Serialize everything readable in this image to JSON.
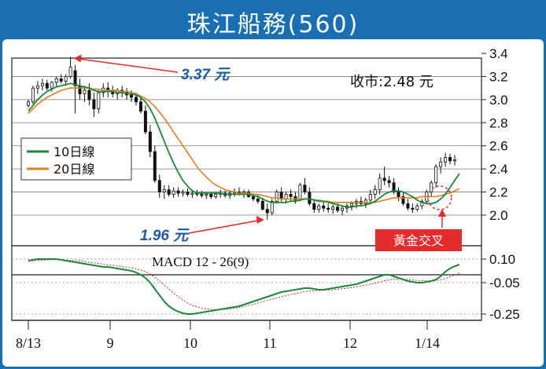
{
  "header": {
    "title": "珠江船務(560)"
  },
  "chart_data": [
    {
      "type": "candlestick",
      "close_label": "收市:2.48 元",
      "yticks": [
        "3.4",
        "3.2",
        "3.0",
        "2.8",
        "2.6",
        "2.4",
        "2.2",
        "2.0"
      ],
      "ylim": [
        1.9,
        3.42
      ],
      "xticks": [
        "8/13",
        "9",
        "10",
        "11",
        "12",
        "1/14"
      ],
      "legend": [
        {
          "name": "10日線",
          "color": "#1a8a3a"
        },
        {
          "name": "20日線",
          "color": "#e0801e"
        }
      ],
      "annotations": {
        "high": "3.37 元",
        "low": "1.96 元",
        "golden_cross": "黃金交叉"
      },
      "candles": [
        [
          2.95,
          3.0,
          2.93,
          2.98
        ],
        [
          2.98,
          3.12,
          2.96,
          3.1
        ],
        [
          3.1,
          3.16,
          3.05,
          3.12
        ],
        [
          3.12,
          3.18,
          3.08,
          3.14
        ],
        [
          3.14,
          3.17,
          3.08,
          3.1
        ],
        [
          3.1,
          3.16,
          3.07,
          3.15
        ],
        [
          3.15,
          3.2,
          3.11,
          3.18
        ],
        [
          3.18,
          3.22,
          3.14,
          3.16
        ],
        [
          3.16,
          3.22,
          3.12,
          3.2
        ],
        [
          3.2,
          3.37,
          3.18,
          3.28
        ],
        [
          3.25,
          3.3,
          2.88,
          3.12
        ],
        [
          3.12,
          3.18,
          3.0,
          3.05
        ],
        [
          3.05,
          3.12,
          2.98,
          3.08
        ],
        [
          3.08,
          3.14,
          2.95,
          3.0
        ],
        [
          3.0,
          3.06,
          2.85,
          2.92
        ],
        [
          2.92,
          3.08,
          2.88,
          3.06
        ],
        [
          3.06,
          3.14,
          3.02,
          3.1
        ],
        [
          3.1,
          3.15,
          3.02,
          3.08
        ],
        [
          3.08,
          3.12,
          3.02,
          3.05
        ],
        [
          3.05,
          3.1,
          3.0,
          3.08
        ],
        [
          3.08,
          3.12,
          3.02,
          3.06
        ],
        [
          3.06,
          3.1,
          3.0,
          3.04
        ],
        [
          3.04,
          3.08,
          2.98,
          3.02
        ],
        [
          3.02,
          3.06,
          2.95,
          2.98
        ],
        [
          2.98,
          3.02,
          2.88,
          2.9
        ],
        [
          2.9,
          2.95,
          2.7,
          2.72
        ],
        [
          2.72,
          2.78,
          2.5,
          2.55
        ],
        [
          2.55,
          2.6,
          2.28,
          2.3
        ],
        [
          2.3,
          2.35,
          2.15,
          2.2
        ],
        [
          2.2,
          2.26,
          2.14,
          2.22
        ],
        [
          2.22,
          2.26,
          2.16,
          2.18
        ],
        [
          2.18,
          2.24,
          2.15,
          2.21
        ],
        [
          2.21,
          2.24,
          2.16,
          2.19
        ],
        [
          2.19,
          2.22,
          2.16,
          2.2
        ],
        [
          2.2,
          2.23,
          2.16,
          2.18
        ],
        [
          2.18,
          2.22,
          2.15,
          2.19
        ],
        [
          2.19,
          2.22,
          2.16,
          2.18
        ],
        [
          2.18,
          2.21,
          2.15,
          2.17
        ],
        [
          2.17,
          2.2,
          2.14,
          2.18
        ],
        [
          2.18,
          2.2,
          2.14,
          2.16
        ],
        [
          2.16,
          2.2,
          2.14,
          2.18
        ],
        [
          2.18,
          2.22,
          2.15,
          2.19
        ],
        [
          2.19,
          2.21,
          2.15,
          2.17
        ],
        [
          2.17,
          2.21,
          2.14,
          2.19
        ],
        [
          2.19,
          2.23,
          2.16,
          2.2
        ],
        [
          2.2,
          2.24,
          2.17,
          2.18
        ],
        [
          2.18,
          2.22,
          2.15,
          2.2
        ],
        [
          2.2,
          2.22,
          2.15,
          2.16
        ],
        [
          2.16,
          2.19,
          2.12,
          2.14
        ],
        [
          2.14,
          2.18,
          2.1,
          2.12
        ],
        [
          2.12,
          2.15,
          2.04,
          2.05
        ],
        [
          2.05,
          2.1,
          1.96,
          2.02
        ],
        [
          2.02,
          2.14,
          2.0,
          2.12
        ],
        [
          2.12,
          2.22,
          2.1,
          2.2
        ],
        [
          2.2,
          2.24,
          2.12,
          2.14
        ],
        [
          2.14,
          2.2,
          2.1,
          2.18
        ],
        [
          2.18,
          2.22,
          2.12,
          2.16
        ],
        [
          2.16,
          2.2,
          2.1,
          2.13
        ],
        [
          2.13,
          2.28,
          2.12,
          2.26
        ],
        [
          2.26,
          2.32,
          2.18,
          2.2
        ],
        [
          2.2,
          2.24,
          2.08,
          2.1
        ],
        [
          2.1,
          2.14,
          2.02,
          2.05
        ],
        [
          2.05,
          2.1,
          2.02,
          2.08
        ],
        [
          2.08,
          2.12,
          2.03,
          2.06
        ],
        [
          2.06,
          2.1,
          2.02,
          2.05
        ],
        [
          2.05,
          2.09,
          2.01,
          2.07
        ],
        [
          2.07,
          2.1,
          2.02,
          2.04
        ],
        [
          2.04,
          2.08,
          2.0,
          2.06
        ],
        [
          2.06,
          2.1,
          2.02,
          2.08
        ],
        [
          2.08,
          2.12,
          2.04,
          2.1
        ],
        [
          2.1,
          2.14,
          2.06,
          2.12
        ],
        [
          2.12,
          2.16,
          2.08,
          2.1
        ],
        [
          2.1,
          2.15,
          2.06,
          2.13
        ],
        [
          2.13,
          2.22,
          2.1,
          2.18
        ],
        [
          2.18,
          2.26,
          2.14,
          2.22
        ],
        [
          2.22,
          2.36,
          2.18,
          2.32
        ],
        [
          2.32,
          2.42,
          2.26,
          2.3
        ],
        [
          2.3,
          2.34,
          2.24,
          2.28
        ],
        [
          2.28,
          2.32,
          2.18,
          2.2
        ],
        [
          2.2,
          2.24,
          2.12,
          2.16
        ],
        [
          2.16,
          2.2,
          2.08,
          2.1
        ],
        [
          2.1,
          2.14,
          2.04,
          2.06
        ],
        [
          2.06,
          2.1,
          2.02,
          2.05
        ],
        [
          2.05,
          2.1,
          2.03,
          2.08
        ],
        [
          2.08,
          2.14,
          2.05,
          2.12
        ],
        [
          2.12,
          2.22,
          2.1,
          2.2
        ],
        [
          2.2,
          2.3,
          2.16,
          2.28
        ],
        [
          2.28,
          2.44,
          2.24,
          2.42
        ],
        [
          2.42,
          2.5,
          2.36,
          2.46
        ],
        [
          2.46,
          2.54,
          2.42,
          2.5
        ],
        [
          2.5,
          2.53,
          2.44,
          2.47
        ],
        [
          2.47,
          2.52,
          2.43,
          2.48
        ]
      ],
      "ma10": [
        2.9,
        2.95,
        3.0,
        3.04,
        3.07,
        3.09,
        3.11,
        3.12,
        3.13,
        3.14,
        3.13,
        3.12,
        3.11,
        3.1,
        3.08,
        3.07,
        3.07,
        3.07,
        3.07,
        3.06,
        3.06,
        3.05,
        3.05,
        3.04,
        3.02,
        2.98,
        2.92,
        2.84,
        2.74,
        2.64,
        2.54,
        2.45,
        2.37,
        2.3,
        2.25,
        2.21,
        2.19,
        2.19,
        2.19,
        2.19,
        2.19,
        2.19,
        2.18,
        2.18,
        2.18,
        2.18,
        2.18,
        2.18,
        2.17,
        2.16,
        2.14,
        2.12,
        2.11,
        2.11,
        2.11,
        2.11,
        2.12,
        2.12,
        2.13,
        2.14,
        2.14,
        2.13,
        2.12,
        2.12,
        2.11,
        2.1,
        2.09,
        2.08,
        2.07,
        2.07,
        2.08,
        2.08,
        2.09,
        2.1,
        2.12,
        2.15,
        2.18,
        2.2,
        2.21,
        2.21,
        2.2,
        2.18,
        2.16,
        2.13,
        2.11,
        2.1,
        2.1,
        2.11,
        2.14,
        2.18,
        2.24,
        2.3,
        2.36
      ],
      "ma20": [
        2.88,
        2.92,
        2.96,
        2.99,
        3.02,
        3.04,
        3.06,
        3.08,
        3.09,
        3.1,
        3.1,
        3.1,
        3.1,
        3.1,
        3.09,
        3.09,
        3.08,
        3.08,
        3.08,
        3.08,
        3.07,
        3.07,
        3.06,
        3.05,
        3.03,
        3.01,
        2.98,
        2.94,
        2.89,
        2.84,
        2.78,
        2.72,
        2.66,
        2.6,
        2.54,
        2.48,
        2.42,
        2.37,
        2.33,
        2.29,
        2.26,
        2.24,
        2.22,
        2.21,
        2.2,
        2.19,
        2.19,
        2.19,
        2.18,
        2.18,
        2.17,
        2.16,
        2.15,
        2.15,
        2.14,
        2.14,
        2.14,
        2.14,
        2.14,
        2.14,
        2.14,
        2.13,
        2.13,
        2.12,
        2.12,
        2.11,
        2.11,
        2.11,
        2.11,
        2.11,
        2.11,
        2.11,
        2.11,
        2.11,
        2.11,
        2.12,
        2.13,
        2.14,
        2.15,
        2.15,
        2.15,
        2.15,
        2.15,
        2.15,
        2.16,
        2.16,
        2.16,
        2.16,
        2.17,
        2.18,
        2.19,
        2.21,
        2.23
      ]
    },
    {
      "type": "line",
      "title": "MACD 12 - 26(9)",
      "yticks": [
        "0.10",
        "-0.05",
        "-0.25"
      ],
      "ylim": [
        -0.27,
        0.13
      ],
      "macd": [
        0.09,
        0.095,
        0.1,
        0.1,
        0.1,
        0.1,
        0.1,
        0.095,
        0.09,
        0.085,
        0.08,
        0.075,
        0.07,
        0.065,
        0.06,
        0.055,
        0.05,
        0.05,
        0.045,
        0.04,
        0.035,
        0.03,
        0.025,
        0.015,
        0.0,
        -0.02,
        -0.05,
        -0.09,
        -0.13,
        -0.17,
        -0.2,
        -0.22,
        -0.235,
        -0.245,
        -0.25,
        -0.25,
        -0.245,
        -0.24,
        -0.235,
        -0.23,
        -0.225,
        -0.22,
        -0.215,
        -0.21,
        -0.205,
        -0.2,
        -0.19,
        -0.18,
        -0.17,
        -0.16,
        -0.15,
        -0.14,
        -0.13,
        -0.12,
        -0.11,
        -0.105,
        -0.1,
        -0.095,
        -0.09,
        -0.085,
        -0.085,
        -0.09,
        -0.095,
        -0.095,
        -0.09,
        -0.085,
        -0.08,
        -0.075,
        -0.07,
        -0.065,
        -0.06,
        -0.05,
        -0.04,
        -0.03,
        -0.02,
        -0.01,
        0.0,
        0.0,
        -0.01,
        -0.02,
        -0.03,
        -0.04,
        -0.045,
        -0.05,
        -0.05,
        -0.045,
        -0.04,
        -0.03,
        -0.01,
        0.02,
        0.04,
        0.055,
        0.065
      ],
      "signal": [
        0.085,
        0.09,
        0.092,
        0.094,
        0.095,
        0.096,
        0.096,
        0.095,
        0.094,
        0.092,
        0.09,
        0.087,
        0.084,
        0.08,
        0.076,
        0.072,
        0.068,
        0.064,
        0.06,
        0.056,
        0.052,
        0.048,
        0.044,
        0.038,
        0.03,
        0.02,
        0.005,
        -0.015,
        -0.04,
        -0.065,
        -0.09,
        -0.115,
        -0.14,
        -0.16,
        -0.18,
        -0.195,
        -0.205,
        -0.212,
        -0.217,
        -0.22,
        -0.222,
        -0.222,
        -0.22,
        -0.217,
        -0.213,
        -0.208,
        -0.202,
        -0.195,
        -0.188,
        -0.18,
        -0.172,
        -0.164,
        -0.156,
        -0.148,
        -0.14,
        -0.133,
        -0.126,
        -0.12,
        -0.114,
        -0.108,
        -0.104,
        -0.101,
        -0.1,
        -0.099,
        -0.097,
        -0.095,
        -0.092,
        -0.089,
        -0.085,
        -0.081,
        -0.077,
        -0.072,
        -0.066,
        -0.06,
        -0.053,
        -0.046,
        -0.038,
        -0.032,
        -0.028,
        -0.027,
        -0.028,
        -0.03,
        -0.033,
        -0.036,
        -0.038,
        -0.039,
        -0.039,
        -0.037,
        -0.032,
        -0.024,
        -0.013,
        -0.001,
        0.011
      ]
    }
  ]
}
